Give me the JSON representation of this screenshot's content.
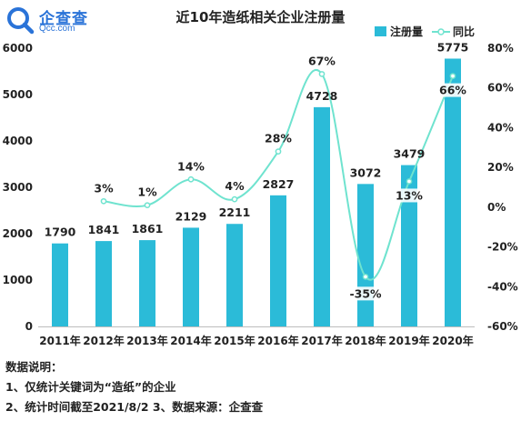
{
  "logo": {
    "name": "企查查",
    "url": "Qcc.com",
    "color": "#2a73d8"
  },
  "chart_data": {
    "type": "bar",
    "title": "近10年造纸相关企业注册量",
    "categories": [
      "2011年",
      "2012年",
      "2013年",
      "2014年",
      "2015年",
      "2016年",
      "2017年",
      "2018年",
      "2019年",
      "2020年"
    ],
    "series": [
      {
        "name": "注册量",
        "type": "bar",
        "axis": "left",
        "color": "#2bbbd8",
        "values": [
          1790,
          1841,
          1861,
          2129,
          2211,
          2827,
          4728,
          3072,
          3479,
          5775
        ],
        "labels": [
          "1790",
          "1841",
          "1861",
          "2129",
          "2211",
          "2827",
          "4728",
          "3072",
          "3479",
          "5775"
        ]
      },
      {
        "name": "同比",
        "type": "line",
        "axis": "right",
        "color": "#6fe3cf",
        "values": [
          null,
          3,
          1,
          14,
          4,
          28,
          67,
          -35,
          13,
          66
        ],
        "labels": [
          "",
          "3%",
          "1%",
          "14%",
          "4%",
          "28%",
          "67%",
          "-35%",
          "13%",
          "66%"
        ]
      }
    ],
    "y_left": {
      "min": 0,
      "max": 6000,
      "ticks": [
        "0",
        "1000",
        "2000",
        "3000",
        "4000",
        "5000",
        "6000"
      ]
    },
    "y_right": {
      "min": -60,
      "max": 80,
      "ticks": [
        "-60%",
        "-40%",
        "-20%",
        "0%",
        "20%",
        "40%",
        "60%",
        "80%"
      ]
    },
    "grid": false,
    "legend_position": "top-right"
  },
  "notes": [
    "数据说明：",
    "1、仅统计关键词为“造纸”的企业",
    "2、统计时间截至2021/8/2  3、数据来源：企查查"
  ]
}
